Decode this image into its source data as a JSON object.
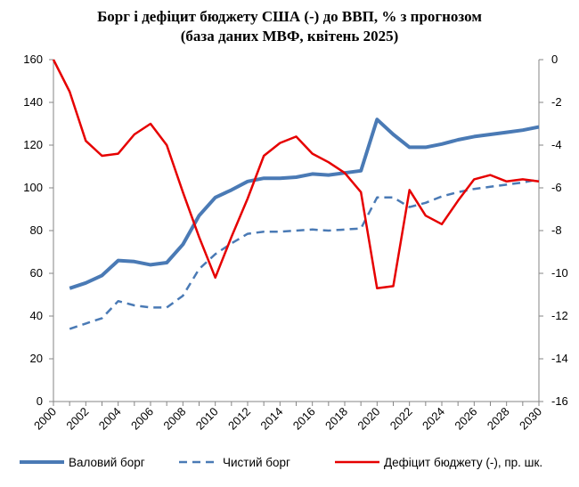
{
  "chart_data": {
    "type": "line",
    "title_line1": "Борг і дефіцит бюджету США (-) до ВВП, % з прогнозом",
    "title_line2": "(база даних МВФ, квітень 2025)",
    "x": [
      2000,
      2001,
      2002,
      2003,
      2004,
      2005,
      2006,
      2007,
      2008,
      2009,
      2010,
      2011,
      2012,
      2013,
      2014,
      2015,
      2016,
      2017,
      2018,
      2019,
      2020,
      2021,
      2022,
      2023,
      2024,
      2025,
      2026,
      2027,
      2028,
      2029,
      2030
    ],
    "x_tick_labels": [
      "2000",
      "2002",
      "2004",
      "2006",
      "2008",
      "2010",
      "2012",
      "2014",
      "2016",
      "2018",
      "2020",
      "2022",
      "2024",
      "2026",
      "2028",
      "2030"
    ],
    "y_left": {
      "ylim": [
        0,
        160
      ],
      "ticks": [
        "0",
        "20",
        "40",
        "60",
        "80",
        "100",
        "120",
        "140",
        "160"
      ]
    },
    "y_right": {
      "ylim": [
        -16,
        0
      ],
      "ticks": [
        "0",
        "-2",
        "-4",
        "-6",
        "-8",
        "-10",
        "-12",
        "-14",
        "-16"
      ]
    },
    "series": [
      {
        "name": "Валовий борг",
        "axis": "left",
        "color": "#4a7ab5",
        "style": "solid",
        "values": [
          null,
          53,
          55.5,
          59,
          66,
          65.5,
          64,
          65,
          73.5,
          87,
          95.5,
          99,
          103,
          104.5,
          104.5,
          105,
          106.5,
          106,
          107,
          108,
          132,
          125,
          119,
          119,
          120.5,
          122.5,
          124,
          125,
          126,
          127,
          128.5
        ]
      },
      {
        "name": "Чистий борг",
        "axis": "left",
        "color": "#4a7ab5",
        "style": "dashed",
        "values": [
          null,
          34,
          36.5,
          39,
          47,
          45,
          44,
          44,
          49.5,
          62,
          69,
          74,
          78.5,
          79.5,
          79.5,
          80,
          80.5,
          80,
          80.5,
          81,
          95.5,
          95.5,
          91,
          93,
          96,
          98,
          99.5,
          100.5,
          101.5,
          102.5,
          104
        ]
      },
      {
        "name": "Дефіцит бюджету (-), пр. шк.",
        "axis": "right",
        "color": "#e60000",
        "style": "solid",
        "values": [
          0,
          -1.5,
          -3.8,
          -4.5,
          -4.4,
          -3.5,
          -3,
          -4,
          -6.2,
          -8.3,
          -10.2,
          -8.3,
          -6.5,
          -4.5,
          -3.9,
          -3.6,
          -4.4,
          -4.8,
          -5.3,
          -6.2,
          -10.7,
          -10.6,
          -6.1,
          -7.3,
          -7.7,
          -6.6,
          -5.6,
          -5.4,
          -5.7,
          -5.6,
          -5.7
        ]
      }
    ],
    "grid": false,
    "legend_position": "bottom"
  }
}
